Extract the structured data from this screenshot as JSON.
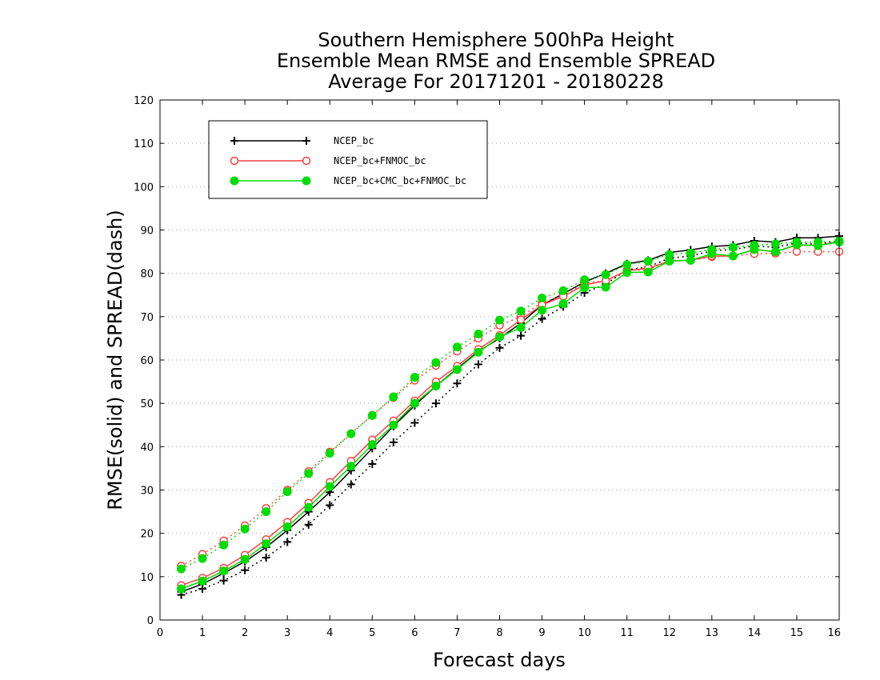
{
  "chart_data": {
    "type": "line",
    "title": [
      "Southern Hemisphere 500hPa Height",
      "Ensemble Mean RMSE and Ensemble SPREAD",
      "Average For 20171201 - 20180228"
    ],
    "xlabel": "Forecast days",
    "ylabel": "RMSE(solid) and SPREAD(dash)",
    "xlim": [
      0,
      16
    ],
    "ylim": [
      0,
      120
    ],
    "xticks": [
      0,
      1,
      2,
      3,
      4,
      5,
      6,
      7,
      8,
      9,
      10,
      11,
      12,
      13,
      14,
      15,
      16
    ],
    "yticks": [
      0,
      10,
      20,
      30,
      40,
      50,
      60,
      70,
      80,
      90,
      100,
      110,
      120
    ],
    "grid": "horizontal dotted",
    "legend_position": "top-left",
    "x": [
      0.5,
      1,
      1.5,
      2,
      2.5,
      3,
      3.5,
      4,
      4.5,
      5,
      5.5,
      6,
      6.5,
      7,
      7.5,
      8,
      8.5,
      9,
      9.5,
      10,
      10.5,
      11,
      11.5,
      12,
      12.5,
      13,
      13.5,
      14,
      14.5,
      15,
      15.5,
      16
    ],
    "series": [
      {
        "name": "NCEP_bc",
        "color": "#000000",
        "marker": "plus",
        "rmse": [
          6.5,
          8.3,
          10.8,
          13.5,
          16.8,
          20.7,
          25,
          29.5,
          34.5,
          39.6,
          44.7,
          49.5,
          54,
          58,
          62,
          65,
          68.5,
          72.7,
          75.3,
          78,
          80,
          82.2,
          83,
          84.8,
          85.4,
          86.2,
          86.5,
          87.5,
          87.2,
          88.2,
          88.2,
          88.6
        ],
        "spread": [
          5.8,
          7.2,
          9.1,
          11.5,
          14.4,
          18,
          22,
          26.5,
          31.3,
          36,
          41,
          45.5,
          50,
          54.6,
          59,
          62.8,
          65.6,
          69.5,
          72.3,
          75.5,
          77.5,
          80.8,
          81.5,
          83.5,
          84,
          85.2,
          85.5,
          86.3,
          86,
          87,
          86.7,
          87.5
        ]
      },
      {
        "name": "NCEP_bc+FNMOC_bc",
        "color": "#ff4040",
        "marker": "open-circle",
        "rmse": [
          8,
          9.7,
          12,
          15,
          18.6,
          22.6,
          27,
          31.8,
          36.7,
          41.6,
          46,
          50.6,
          55,
          58.6,
          62.5,
          65.7,
          69.3,
          72.7,
          74.7,
          77.3,
          78.3,
          80.6,
          81.2,
          82.8,
          83,
          84,
          84,
          85.5,
          85,
          86.5,
          86.5,
          87.3
        ],
        "spread": [
          12.5,
          15.2,
          18.3,
          21.8,
          25.8,
          30,
          34.3,
          38.8,
          43,
          47.3,
          51.3,
          55.3,
          58.7,
          62,
          65,
          68,
          70,
          73.3,
          74.7,
          77.8,
          78.3,
          80.7,
          80.8,
          83,
          83,
          83.8,
          84,
          84.5,
          84.6,
          85,
          85,
          85
        ]
      },
      {
        "name": "NCEP_bc+CMC_bc+FNMOC_bc",
        "color": "#00dd00",
        "marker": "filled-circle",
        "rmse": [
          7.2,
          9,
          11.3,
          14,
          17.6,
          21.5,
          26,
          30.8,
          35.5,
          40.5,
          45,
          50,
          54,
          57.8,
          61.8,
          65.3,
          67.5,
          71.5,
          73,
          76.7,
          76.8,
          80.2,
          80.3,
          82.8,
          83,
          84.5,
          84,
          85.5,
          85,
          86.6,
          86.4,
          87.2
        ],
        "spread": [
          11.8,
          14.2,
          17.3,
          21,
          25,
          29.6,
          33.8,
          38.5,
          43,
          47.2,
          51.5,
          56,
          59.4,
          63,
          66,
          69.2,
          71.3,
          74.3,
          76,
          78.5,
          79.7,
          82,
          82.8,
          84.3,
          84.7,
          85.5,
          86,
          86.5,
          86.8,
          87.2,
          87.2,
          87.5
        ]
      }
    ]
  }
}
